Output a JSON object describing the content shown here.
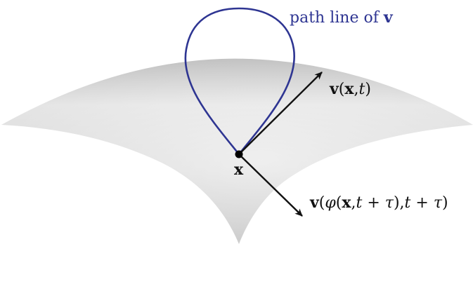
{
  "diagram": {
    "colors": {
      "surface_light": "#f2f2f2",
      "surface_dark": "#bdbdbd",
      "path_line": "#2e3592",
      "arrow": "#111111",
      "point": "#000000"
    },
    "labels": {
      "path_line": {
        "prefix": "path line of ",
        "symbol": "v"
      },
      "velocity_now": {
        "v": "v",
        "open": "(",
        "x": "x",
        "comma": ",",
        "t": "t",
        "close": ")"
      },
      "point": "x",
      "velocity_later": {
        "v": "v",
        "open": "(",
        "phi": "φ",
        "open2": "(",
        "x": "x",
        "comma": ",",
        "t1": "t",
        "plus1": " + ",
        "tau1": "τ",
        "close2": ")",
        "comma2": ",",
        "t2": "t",
        "plus2": " + ",
        "tau2": "τ",
        "close": ")"
      }
    }
  }
}
